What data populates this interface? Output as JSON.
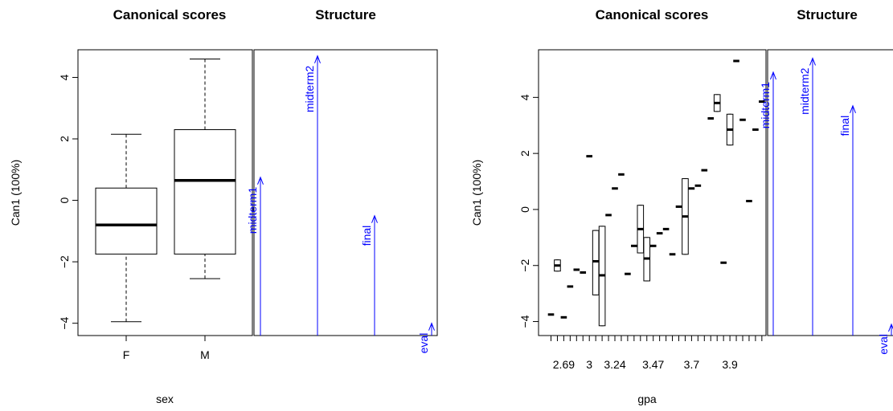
{
  "colors": {
    "axes": "#000000",
    "vectors": "#0000ff",
    "box_fill": "#ffffff"
  },
  "chart_data": [
    {
      "type": "boxplot",
      "title": "Canonical scores",
      "xlabel": "sex",
      "ylabel": "Can1 (100%)",
      "categories": [
        "F",
        "M"
      ],
      "ylim": [
        -4.4,
        4.9
      ],
      "yticks": [
        -4,
        -2,
        0,
        2,
        4
      ],
      "ytick_labels": [
        "−4",
        "−2",
        "0",
        "2",
        "4"
      ],
      "boxes": [
        {
          "name": "F",
          "whisker_low": -3.95,
          "q1": -1.75,
          "median": -0.8,
          "q3": 0.4,
          "whisker_high": 2.15
        },
        {
          "name": "M",
          "whisker_low": -2.55,
          "q1": -1.75,
          "median": 0.65,
          "q3": 2.3,
          "whisker_high": 4.6
        }
      ]
    },
    {
      "type": "structure-vectors",
      "title": "Structure",
      "ylim": [
        -4.4,
        4.9
      ],
      "vectors": [
        {
          "name": "midterm1",
          "value": 0.75
        },
        {
          "name": "midterm2",
          "value": 4.7
        },
        {
          "name": "final",
          "value": -0.5
        },
        {
          "name": "eval",
          "value": -4.0
        }
      ]
    },
    {
      "type": "boxplot",
      "title": "Canonical scores",
      "xlabel": "gpa",
      "ylabel": "Can1 (100%)",
      "ylim": [
        -4.5,
        5.7
      ],
      "yticks": [
        -4,
        -2,
        0,
        2,
        4
      ],
      "ytick_labels": [
        "−4",
        "−2",
        "0",
        "2",
        "4"
      ],
      "xtick_labels": [
        "2.69",
        "3",
        "3.24",
        "3.47",
        "3.7",
        "3.9"
      ],
      "n_levels": 34,
      "labeled_levels": [
        2,
        6,
        10,
        16,
        22,
        28
      ],
      "boxes": [
        {
          "index": 0,
          "median": -3.75
        },
        {
          "index": 1,
          "q1": -2.2,
          "median": -2.0,
          "q3": -1.8,
          "whisker_low": -2.2,
          "whisker_high": -1.8
        },
        {
          "index": 2,
          "median": -3.85
        },
        {
          "index": 3,
          "median": -2.75
        },
        {
          "index": 4,
          "median": -2.15
        },
        {
          "index": 5,
          "median": -2.25
        },
        {
          "index": 6,
          "median": 1.9
        },
        {
          "index": 7,
          "q1": -3.05,
          "median": -1.85,
          "q3": -0.75,
          "whisker_low": -3.05,
          "whisker_high": -0.75
        },
        {
          "index": 8,
          "q1": -4.15,
          "median": -2.35,
          "q3": -0.6,
          "whisker_low": -4.15,
          "whisker_high": -0.6
        },
        {
          "index": 9,
          "median": -0.2
        },
        {
          "index": 10,
          "median": 0.75
        },
        {
          "index": 11,
          "median": 1.25
        },
        {
          "index": 12,
          "median": -2.3
        },
        {
          "index": 13,
          "median": -1.3
        },
        {
          "index": 14,
          "q1": -1.55,
          "median": -0.7,
          "q3": 0.15,
          "whisker_low": -1.55,
          "whisker_high": 0.15
        },
        {
          "index": 15,
          "q1": -2.55,
          "median": -1.75,
          "q3": -1.0,
          "whisker_low": -2.55,
          "whisker_high": -1.0
        },
        {
          "index": 16,
          "median": -1.3
        },
        {
          "index": 17,
          "median": -0.85
        },
        {
          "index": 18,
          "median": -0.7
        },
        {
          "index": 19,
          "median": -1.6
        },
        {
          "index": 20,
          "median": 0.1
        },
        {
          "index": 21,
          "q1": -1.6,
          "median": -0.25,
          "q3": 1.1,
          "whisker_low": -1.6,
          "whisker_high": 1.1
        },
        {
          "index": 22,
          "median": 0.75
        },
        {
          "index": 23,
          "median": 0.85
        },
        {
          "index": 24,
          "median": 1.4
        },
        {
          "index": 25,
          "median": 3.25
        },
        {
          "index": 26,
          "q1": 3.5,
          "median": 3.8,
          "q3": 4.1,
          "whisker_low": 3.5,
          "whisker_high": 4.1
        },
        {
          "index": 27,
          "median": -1.9
        },
        {
          "index": 28,
          "q1": 2.3,
          "median": 2.85,
          "q3": 3.4,
          "whisker_low": 2.3,
          "whisker_high": 3.4
        },
        {
          "index": 29,
          "median": 5.3
        },
        {
          "index": 30,
          "median": 3.2
        },
        {
          "index": 31,
          "median": 0.3
        },
        {
          "index": 32,
          "median": 2.85
        },
        {
          "index": 33,
          "median": 3.85
        }
      ]
    },
    {
      "type": "structure-vectors",
      "title": "Structure",
      "ylim": [
        -4.5,
        5.7
      ],
      "vectors": [
        {
          "name": "midterm1",
          "value": 4.9
        },
        {
          "name": "midterm2",
          "value": 5.4
        },
        {
          "name": "final",
          "value": 3.7
        },
        {
          "name": "eval",
          "value": -4.1
        }
      ]
    }
  ]
}
